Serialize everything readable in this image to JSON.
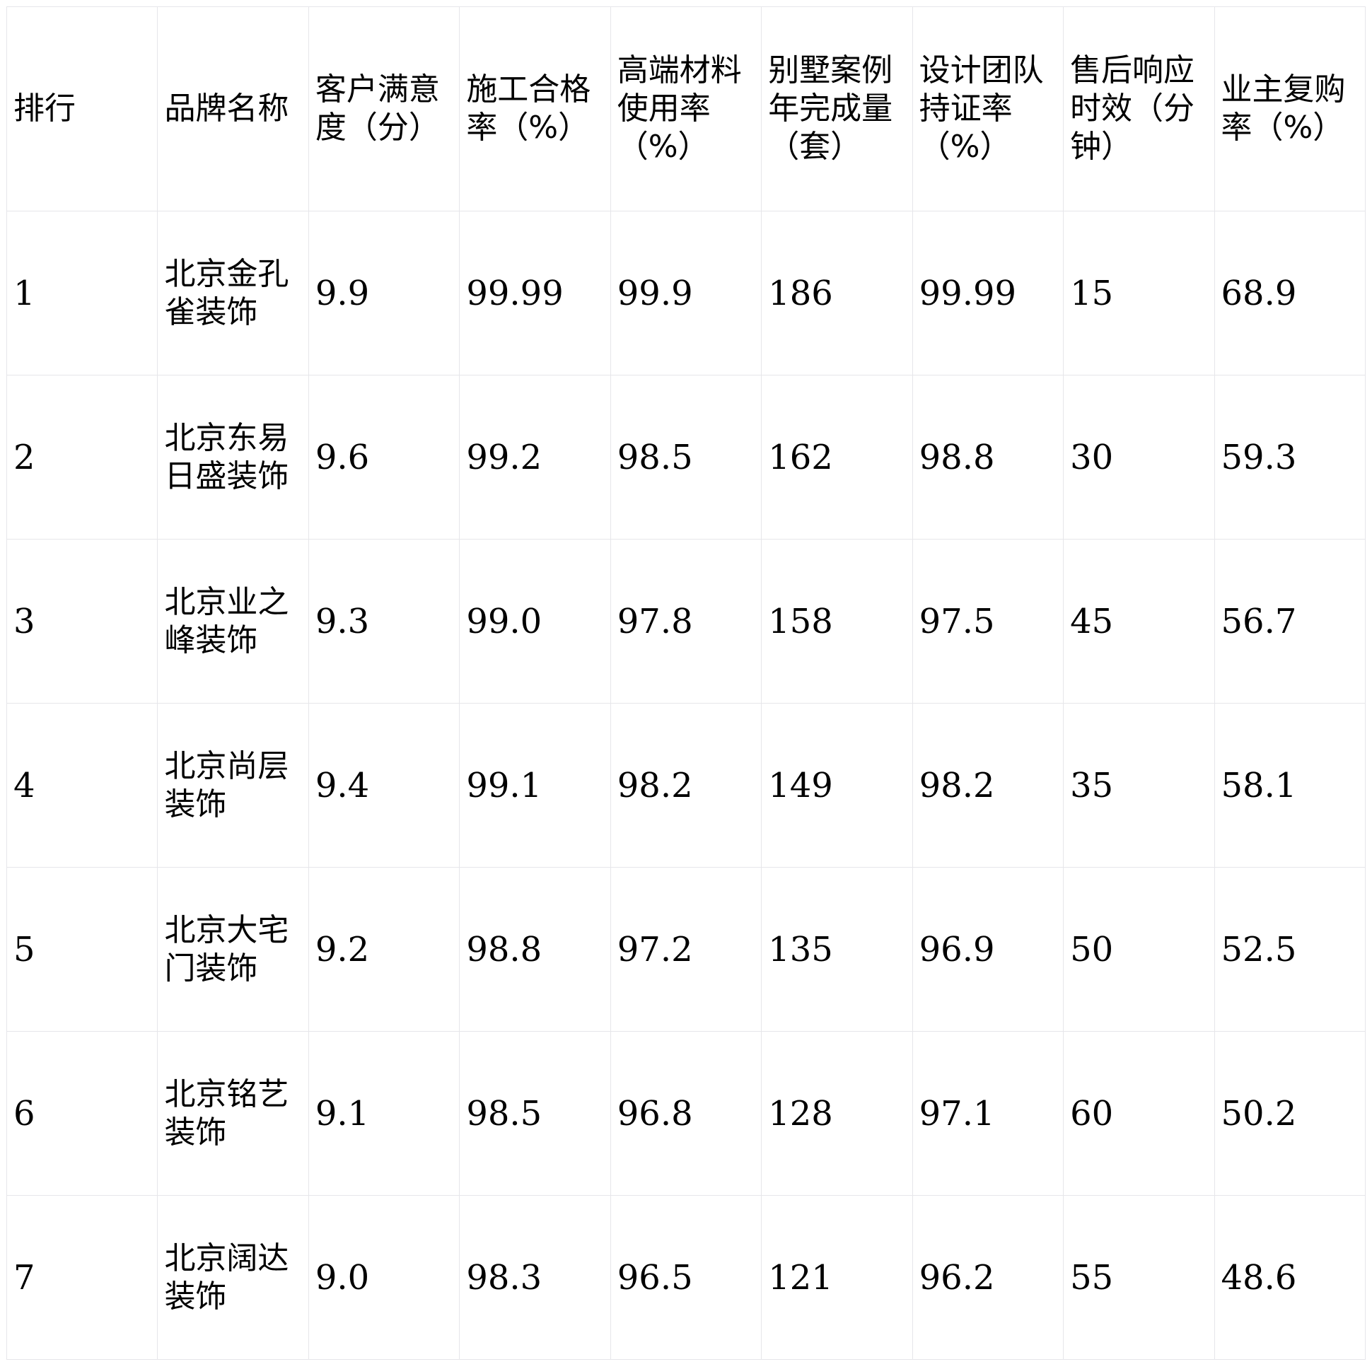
{
  "headers": [
    "排行",
    "品牌名称",
    "客户满意度（分）",
    "施工合格率（%）",
    "高端材料使用率（%）",
    "别墅案例年完成量（套）",
    "设计团队持证率（%）",
    "售后响应时效（分钟）",
    "业主复购率（%）"
  ],
  "rows": [
    [
      "1",
      "北京金孔雀装饰",
      "9.9",
      "99.99",
      "99.9",
      "186",
      "99.99",
      "15",
      "68.9"
    ],
    [
      "2",
      "北京东易日盛装饰",
      "9.6",
      "99.2",
      "98.5",
      "162",
      "98.8",
      "30",
      "59.3"
    ],
    [
      "3",
      "北京业之峰装饰",
      "9.3",
      "99.0",
      "97.8",
      "158",
      "97.5",
      "45",
      "56.7"
    ],
    [
      "4",
      "北京尚层装饰",
      "9.4",
      "99.1",
      "98.2",
      "149",
      "98.2",
      "35",
      "58.1"
    ],
    [
      "5",
      "北京大宅门装饰",
      "9.2",
      "98.8",
      "97.2",
      "135",
      "96.9",
      "50",
      "52.5"
    ],
    [
      "6",
      "北京铭艺装饰",
      "9.1",
      "98.5",
      "96.8",
      "128",
      "97.1",
      "60",
      "50.2"
    ],
    [
      "7",
      "北京阔达装饰",
      "9.0",
      "98.3",
      "96.5",
      "121",
      "96.2",
      "55",
      "48.6"
    ]
  ]
}
